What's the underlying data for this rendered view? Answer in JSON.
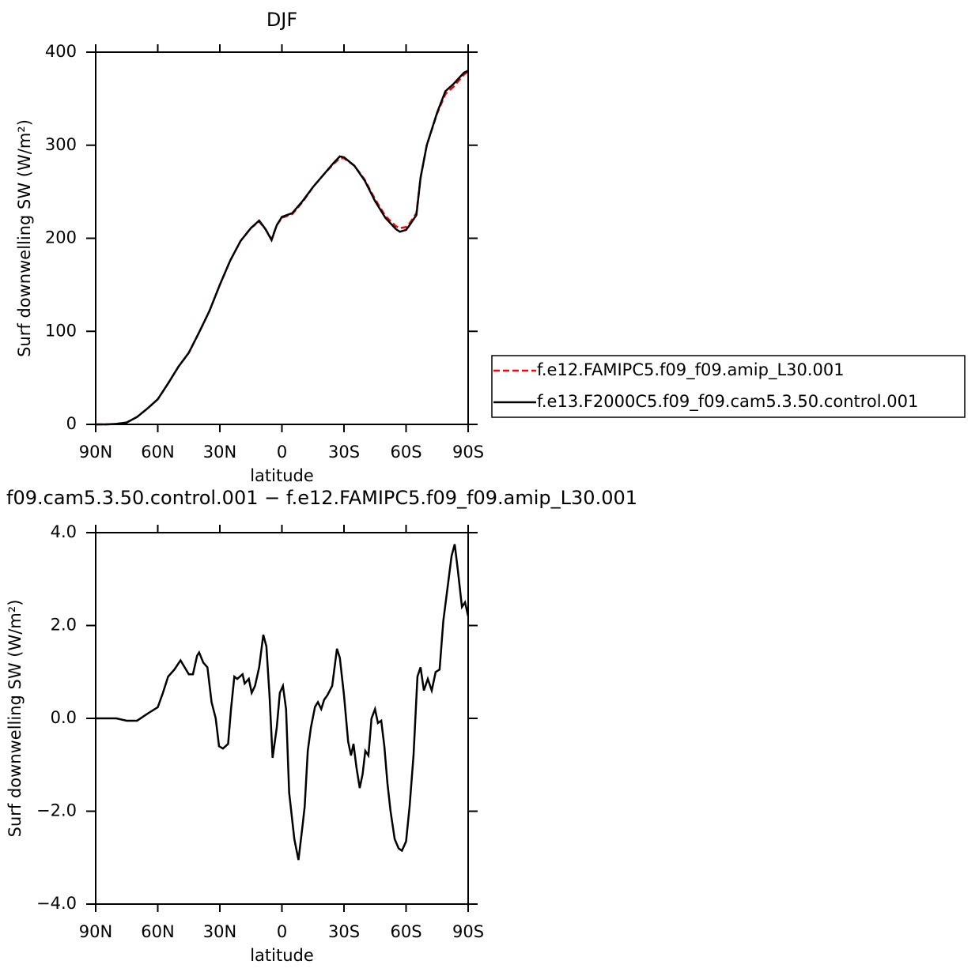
{
  "chart_data": [
    {
      "type": "line",
      "title": "DJF",
      "xlabel": "latitude",
      "ylabel": "Surf downwelling SW (W/m²)",
      "x": [
        90,
        85,
        80,
        75,
        70,
        65,
        60,
        55,
        50,
        45,
        40,
        35,
        30,
        25,
        20,
        15,
        11,
        8,
        5,
        2.5,
        0,
        -5,
        -10,
        -15,
        -20,
        -25,
        -28,
        -30,
        -35,
        -40,
        -45,
        -50,
        -55,
        -57,
        -60,
        -62,
        -65,
        -67,
        -70,
        -75,
        -79,
        -83,
        -88,
        -90
      ],
      "series": [
        {
          "name": "f.e12.FAMIPC5.f09_f09.amip_L30.001",
          "color": "#ff0000",
          "linestyle": "dashed",
          "values": [
            0,
            0,
            0.5,
            2,
            8,
            17,
            27,
            44,
            62,
            77,
            99,
            122,
            150,
            176,
            197,
            211,
            218,
            210,
            199,
            214,
            222,
            226,
            239,
            255,
            268,
            280,
            286,
            286,
            278,
            263,
            242,
            224,
            213,
            211,
            212,
            217,
            227,
            265,
            300,
            334,
            355,
            363,
            376,
            379
          ]
        },
        {
          "name": "f.e13.F2000C5.f09_f09.cam5.3.50.control.001",
          "color": "#000000",
          "linestyle": "solid",
          "values": [
            0,
            0,
            0.5,
            2,
            8,
            17,
            27,
            44,
            62,
            77,
            99,
            122,
            150,
            176,
            197,
            211,
            219,
            210,
            198,
            214,
            223,
            227,
            240,
            255,
            268,
            281,
            288,
            287,
            278,
            262,
            240,
            222,
            210,
            207,
            209,
            215,
            225,
            265,
            300,
            335,
            358,
            366,
            378,
            380
          ]
        }
      ],
      "xlim": [
        90,
        -90
      ],
      "xticks": [
        {
          "value": 90,
          "label": "90N"
        },
        {
          "value": 60,
          "label": "60N"
        },
        {
          "value": 30,
          "label": "30N"
        },
        0,
        {
          "value": -30,
          "label": "30S"
        },
        {
          "value": -60,
          "label": "60S"
        },
        {
          "value": -90,
          "label": "90S"
        }
      ],
      "ylim": [
        0,
        400
      ],
      "yticks": [
        0,
        100,
        200,
        300,
        400
      ],
      "legend": "right"
    },
    {
      "type": "line",
      "title": "f09.cam5.3.50.control.001 − f.e12.FAMIPC5.f09_f09.amip_L30.001",
      "xlabel": "latitude",
      "ylabel": "Surf downwelling SW (W/m²)",
      "x": [
        90,
        80,
        75,
        70,
        65,
        60,
        57.5,
        55,
        52,
        49,
        47,
        45,
        43,
        41,
        40,
        38,
        36,
        34,
        32,
        30.4,
        28.5,
        26,
        24.6,
        23,
        21.6,
        19,
        18,
        16,
        14.6,
        13,
        11,
        9,
        7.5,
        6,
        4.5,
        2.5,
        1,
        -0.5,
        -2,
        -3.5,
        -6,
        -8,
        -10,
        -11,
        -12.5,
        -14,
        -16,
        -17.4,
        -19,
        -20.4,
        -22,
        -24.3,
        -26.6,
        -28,
        -30,
        -32,
        -33.4,
        -34.6,
        -36,
        -37.6,
        -39,
        -40.3,
        -41.8,
        -43.3,
        -45,
        -46.4,
        -48,
        -49.5,
        -51,
        -52.5,
        -54.5,
        -56.4,
        -58,
        -60,
        -61.7,
        -63.6,
        -65.5,
        -67,
        -68.6,
        -70.5,
        -72.4,
        -74.3,
        -76.2,
        -78,
        -80,
        -82,
        -83.5,
        -85,
        -87,
        -88.5,
        -90
      ],
      "color": "#000000",
      "values": [
        0,
        0,
        -0.05,
        -0.05,
        0.1,
        0.24,
        0.55,
        0.9,
        1.05,
        1.25,
        1.1,
        0.95,
        0.95,
        1.35,
        1.42,
        1.2,
        1.1,
        0.35,
        0,
        -0.6,
        -0.65,
        -0.55,
        0.2,
        0.9,
        0.85,
        0.95,
        0.75,
        0.85,
        0.55,
        0.7,
        1.1,
        1.8,
        1.55,
        0.5,
        -0.85,
        -0.2,
        0.55,
        0.7,
        0.2,
        -1.6,
        -2.6,
        -3.05,
        -2.3,
        -1.9,
        -0.7,
        -0.2,
        0.25,
        0.35,
        0.2,
        0.4,
        0.5,
        0.7,
        1.5,
        1.3,
        0.5,
        -0.5,
        -0.8,
        -0.55,
        -1.05,
        -1.5,
        -1.2,
        -0.7,
        -0.8,
        0,
        0.2,
        -0.1,
        -0.05,
        -0.6,
        -1.4,
        -2,
        -2.6,
        -2.8,
        -2.85,
        -2.65,
        -1.9,
        -0.8,
        0.9,
        1.1,
        0.6,
        0.85,
        0.6,
        1,
        1.05,
        2.1,
        2.8,
        3.5,
        3.75,
        3.2,
        2.4,
        2.5,
        2.2
      ],
      "xlim": [
        90,
        -90
      ],
      "xticks": [
        {
          "value": 90,
          "label": "90N"
        },
        {
          "value": 60,
          "label": "60N"
        },
        {
          "value": 30,
          "label": "30N"
        },
        0,
        {
          "value": -30,
          "label": "30S"
        },
        {
          "value": -60,
          "label": "60S"
        },
        {
          "value": -90,
          "label": "90S"
        }
      ],
      "ylim": [
        -4,
        4
      ],
      "yticks": [
        {
          "value": -4,
          "label": "−4.0"
        },
        {
          "value": -2,
          "label": "−2.0"
        },
        {
          "value": 0,
          "label": "0.0"
        },
        {
          "value": 2,
          "label": "2.0"
        },
        {
          "value": 4,
          "label": "4.0"
        }
      ]
    }
  ]
}
